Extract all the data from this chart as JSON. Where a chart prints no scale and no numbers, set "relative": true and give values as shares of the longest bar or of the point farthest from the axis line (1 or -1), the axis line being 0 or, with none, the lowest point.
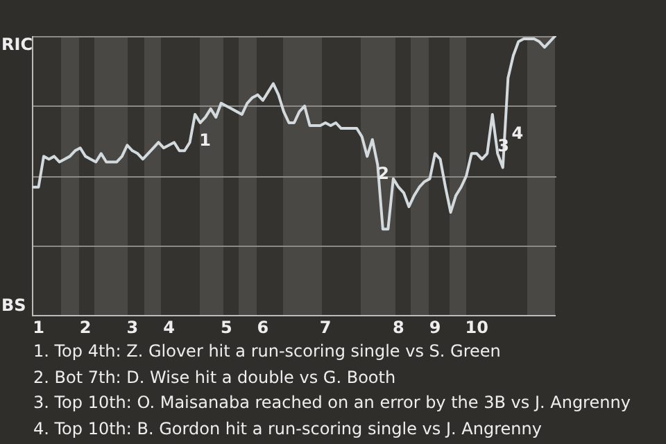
{
  "chart_data": {
    "type": "line",
    "relative": true,
    "categories": [
      null,
      "1",
      null,
      null,
      null,
      null,
      null,
      null,
      null,
      null,
      "2",
      null,
      null,
      null,
      null,
      null,
      null,
      null,
      null,
      "3",
      null,
      null,
      null,
      null,
      null,
      null,
      "4",
      null,
      null,
      null,
      null,
      null,
      null,
      null,
      null,
      null,
      null,
      "5",
      null,
      null,
      null,
      null,
      null,
      null,
      "6",
      null,
      null,
      null,
      null,
      null,
      null,
      null,
      null,
      null,
      null,
      null,
      "7",
      null,
      null,
      null,
      null,
      null,
      null,
      null,
      null,
      null,
      null,
      null,
      null,
      null,
      "8",
      null,
      null,
      null,
      null,
      null,
      null,
      "9",
      null,
      null,
      null,
      null,
      null,
      null,
      null,
      "10",
      null,
      null,
      null,
      null,
      null,
      null,
      null,
      null,
      null,
      null,
      null,
      null,
      null,
      null,
      null
    ],
    "series": [
      {
        "color": "#d3dadd",
        "values": [
          0.46,
          0.46,
          0.57,
          0.56,
          0.57,
          0.55,
          0.56,
          0.57,
          0.59,
          0.6,
          0.57,
          0.56,
          0.55,
          0.58,
          0.55,
          0.55,
          0.55,
          0.57,
          0.61,
          0.59,
          0.58,
          0.56,
          0.58,
          0.6,
          0.62,
          0.6,
          0.61,
          0.62,
          0.59,
          0.59,
          0.62,
          0.72,
          0.69,
          0.71,
          0.74,
          0.71,
          0.76,
          0.75,
          0.74,
          0.73,
          0.72,
          0.76,
          0.78,
          0.79,
          0.77,
          0.8,
          0.83,
          0.79,
          0.73,
          0.69,
          0.69,
          0.73,
          0.75,
          0.68,
          0.68,
          0.68,
          0.69,
          0.68,
          0.69,
          0.67,
          0.67,
          0.67,
          0.67,
          0.64,
          0.57,
          0.63,
          0.54,
          0.31,
          0.31,
          0.49,
          0.46,
          0.44,
          0.39,
          0.43,
          0.46,
          0.48,
          0.49,
          0.58,
          0.56,
          0.46,
          0.37,
          0.43,
          0.46,
          0.5,
          0.58,
          0.58,
          0.56,
          0.58,
          0.72,
          0.58,
          0.53,
          0.85,
          0.93,
          0.98,
          0.99,
          0.99,
          0.99,
          0.98,
          0.96,
          0.98,
          1
        ]
      }
    ],
    "legend": false,
    "marker": "none",
    "line_style": "solid",
    "annotations": [
      "1",
      "2",
      "3",
      "4",
      "RIC",
      "BS",
      "1. Top 4th: Z. Glover hit a run-scoring single vs S. Green",
      "2. Bot 7th: D. Wise hit a double vs G. Booth",
      "3. Top 10th: O. Maisanaba reached on an error by the 3B vs J. Angrenny",
      "4. Top 10th: B. Gordon hit a run-scoring single vs J. Angrenny"
    ]
  }
}
